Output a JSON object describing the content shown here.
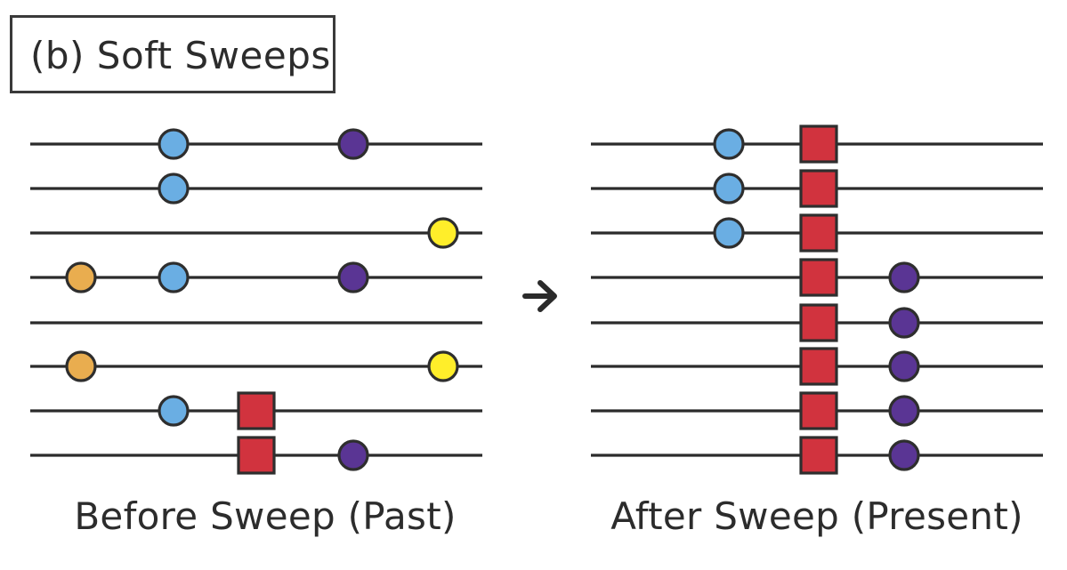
{
  "title": "(b) Soft Sweeps",
  "colors": {
    "line": "#2b2b2b",
    "outline": "#2e2e2e",
    "blue": "#6aaee3",
    "purple": "#5a3594",
    "yellow": "#ffee2a",
    "orange": "#e9ad4f",
    "red": "#d1333e"
  },
  "before": {
    "caption": "Before Sweep (Past)",
    "haplotypes": [
      [
        "blue",
        "purple"
      ],
      [
        "blue"
      ],
      [
        "yellow"
      ],
      [
        "orange",
        "blue",
        "purple"
      ],
      [],
      [
        "orange",
        "yellow"
      ],
      [
        "blue",
        "red-square"
      ],
      [
        "red-square",
        "purple"
      ]
    ]
  },
  "after": {
    "caption": "After Sweep (Present)",
    "haplotypes": [
      [
        "blue",
        "red-square"
      ],
      [
        "blue",
        "red-square"
      ],
      [
        "blue",
        "red-square"
      ],
      [
        "red-square",
        "purple"
      ],
      [
        "red-square",
        "purple"
      ],
      [
        "red-square",
        "purple"
      ],
      [
        "red-square",
        "purple"
      ],
      [
        "red-square",
        "purple"
      ]
    ]
  },
  "arrow_icon": "right-arrow-icon"
}
